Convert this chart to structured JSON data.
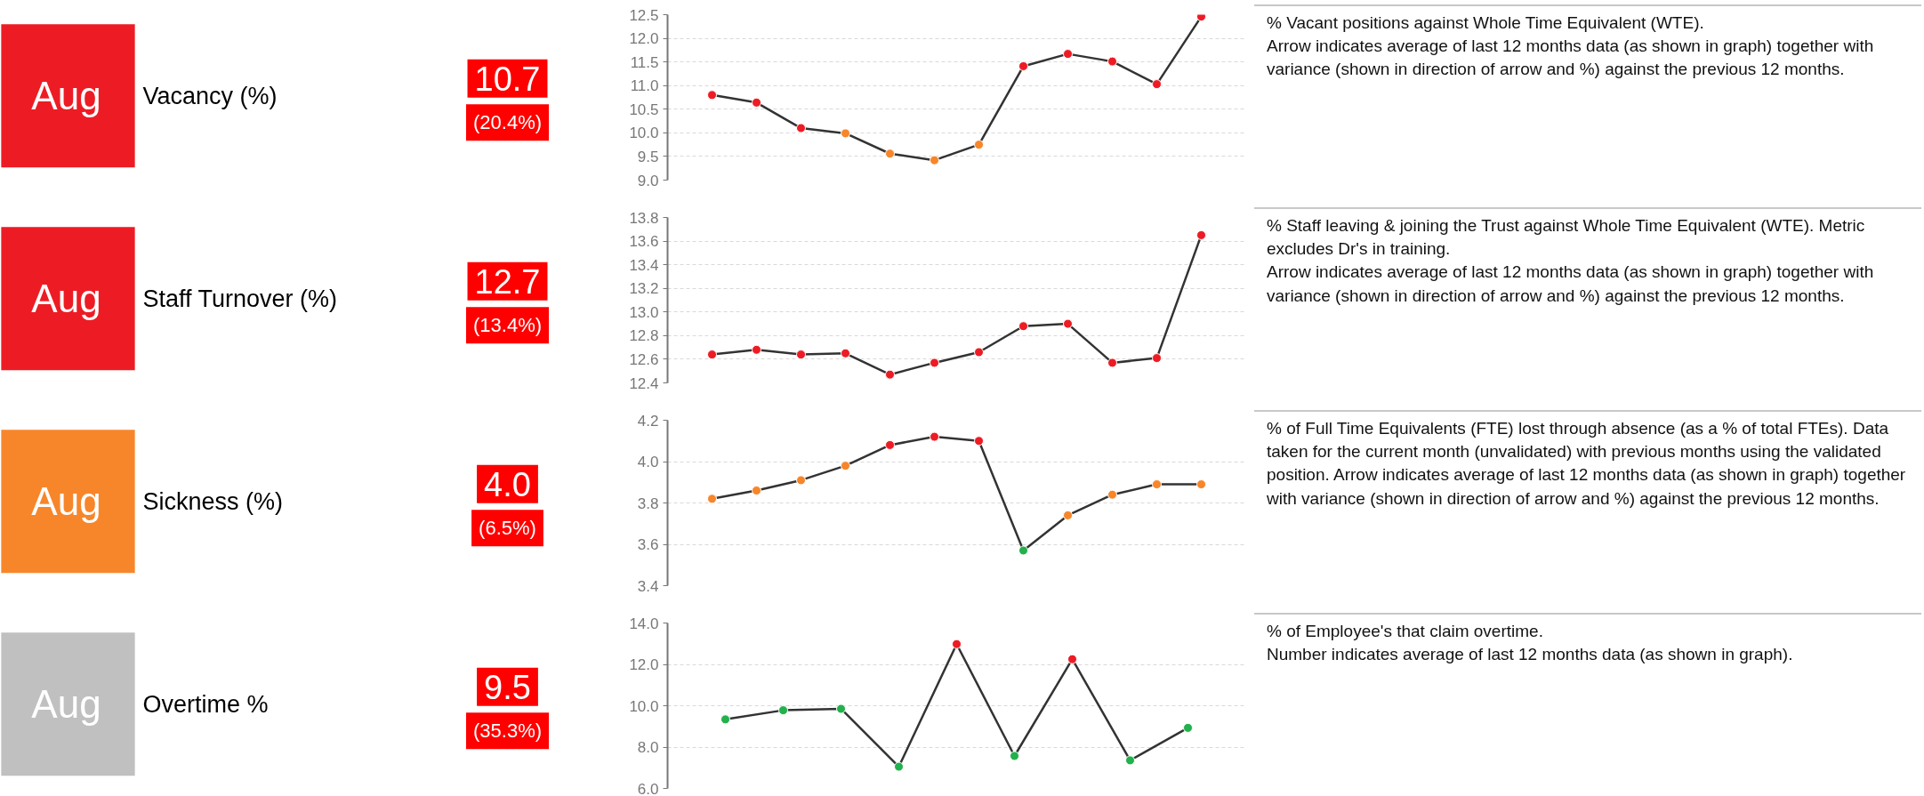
{
  "chart_data": [
    {
      "type": "line",
      "categories": [
        null,
        null,
        null,
        null,
        null,
        null,
        null,
        null,
        null,
        null,
        null,
        null
      ],
      "color": "#333333",
      "values": [
        10.8,
        10.64,
        10.1,
        9.99,
        9.56,
        9.42,
        9.75,
        11.41,
        11.67,
        11.51,
        11.03,
        12.46
      ],
      "colors": [
        "#ed1c24",
        "#ed1c24",
        "#ed1c24",
        "#f7862a",
        "#f7862a",
        "#f7862a",
        "#f7862a",
        "#ed1c24",
        "#ed1c24",
        "#ed1c24",
        "#ed1c24",
        "#ed1c24"
      ],
      "ylim": [
        9.0,
        12.5
      ],
      "yticks": [
        {
          "value": 9,
          "label": "9.0"
        },
        9.5,
        {
          "value": 10,
          "label": "10.0"
        },
        10.5,
        {
          "value": 11,
          "label": "11.0"
        },
        11.5,
        {
          "value": 12,
          "label": "12.0"
        },
        12.5
      ],
      "grid": "y",
      "marker": "circle",
      "tick_labels": "y",
      "annotations": [
        "Aug",
        "Vacancy (%)",
        "10.7",
        "(20.4%)",
        "% Vacant positions against Whole Time Equivalent (WTE).",
        "Arrow indicates average of last 12 months data (as shown in graph) together with variance (shown in direction of arrow and %) against the previous 12 months."
      ]
    },
    {
      "type": "line",
      "categories": [
        null,
        null,
        null,
        null,
        null,
        null,
        null,
        null,
        null,
        null,
        null,
        null
      ],
      "color": "#333333",
      "values": [
        12.64,
        12.68,
        12.64,
        12.65,
        12.47,
        12.57,
        12.66,
        12.88,
        12.9,
        12.57,
        12.61,
        13.65
      ],
      "colors": [
        "#ed1c24",
        "#ed1c24",
        "#ed1c24",
        "#ed1c24",
        "#ed1c24",
        "#ed1c24",
        "#ed1c24",
        "#ed1c24",
        "#ed1c24",
        "#ed1c24",
        "#ed1c24",
        "#ed1c24"
      ],
      "ylim": [
        12.4,
        13.8
      ],
      "yticks": [
        12.4,
        12.6,
        12.8,
        {
          "value": 13,
          "label": "13.0"
        },
        13.2,
        13.4,
        13.6,
        13.8
      ],
      "grid": "y",
      "marker": "circle",
      "tick_labels": "y",
      "annotations": [
        "Aug",
        "Staff Turnover (%)",
        "12.7",
        "(13.4%)",
        "% Staff leaving & joining the Trust against Whole Time Equivalent (WTE).  Metric excludes Dr's in training.",
        "Arrow indicates average of last 12 months data (as shown in graph) together with variance (shown in direction of arrow and %) against the previous 12 months."
      ]
    },
    {
      "type": "line",
      "categories": [
        null,
        null,
        null,
        null,
        null,
        null,
        null,
        null,
        null,
        null,
        null,
        null
      ],
      "color": "#333333",
      "values": [
        3.82,
        3.86,
        3.91,
        3.98,
        4.08,
        4.12,
        4.1,
        3.57,
        3.74,
        3.84,
        3.89,
        3.89
      ],
      "colors": [
        "#f7862a",
        "#f7862a",
        "#f7862a",
        "#f7862a",
        "#ed1c24",
        "#ed1c24",
        "#ed1c24",
        "#22b14c",
        "#f7862a",
        "#f7862a",
        "#f7862a",
        "#f7862a"
      ],
      "ylim": [
        3.4,
        4.2
      ],
      "yticks": [
        3.4,
        3.6,
        3.8,
        {
          "value": 4,
          "label": "4.0"
        },
        4.2
      ],
      "grid": "y",
      "marker": "circle",
      "tick_labels": "y",
      "annotations": [
        "Aug",
        "Sickness (%)",
        "4.0",
        "(6.5%)",
        "% of Full Time Equivalents (FTE) lost through absence (as a % of total FTEs).  Data taken for the current month (unvalidated) with previous months using the validated position. Arrow indicates average of last 12 months data (as shown in graph) together with variance (shown in direction of arrow and %) against the previous 12 months."
      ]
    },
    {
      "type": "line",
      "categories": [
        null,
        null,
        null,
        null,
        null,
        null,
        null,
        null,
        null
      ],
      "color": "#333333",
      "values": [
        9.34,
        9.78,
        9.85,
        7.05,
        12.98,
        7.57,
        12.25,
        7.36,
        8.93
      ],
      "colors": [
        "#22b14c",
        "#22b14c",
        "#22b14c",
        "#22b14c",
        "#ed1c24",
        "#22b14c",
        "#ed1c24",
        "#22b14c",
        "#22b14c"
      ],
      "ylim": [
        6.0,
        14.0
      ],
      "yticks": [
        {
          "value": 6,
          "label": "6.0"
        },
        {
          "value": 8,
          "label": "8.0"
        },
        {
          "value": 10,
          "label": "10.0"
        },
        {
          "value": 12,
          "label": "12.0"
        },
        {
          "value": 14,
          "label": "14.0"
        }
      ],
      "grid": "y",
      "marker": "circle",
      "tick_labels": "y",
      "annotations": [
        "Aug",
        "Overtime %",
        "9.5",
        "(35.3%)",
        "% of Employee's that claim overtime.",
        "Number indicates average of last 12 months data (as shown in graph)."
      ]
    }
  ]
}
